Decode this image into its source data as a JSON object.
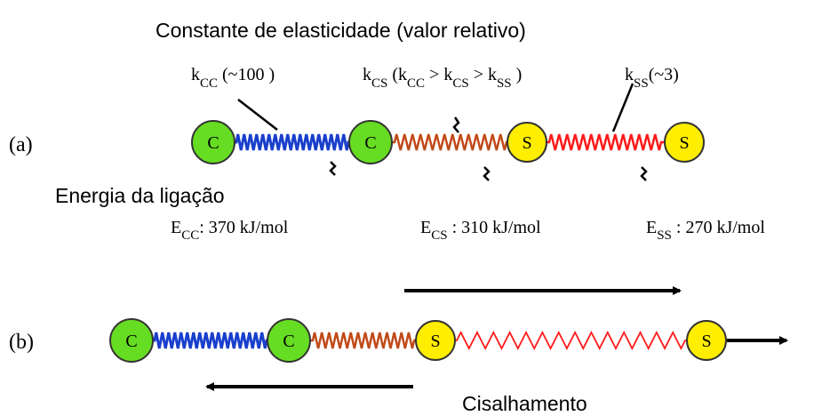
{
  "title": "Constante de elasticidade (valor relativo)",
  "k_labels": [
    {
      "parts": [
        {
          "text": "k",
          "sub": false
        },
        {
          "text": "CC",
          "sub": true
        },
        {
          "text": " (~100 )",
          "sub": false
        }
      ]
    },
    {
      "parts": [
        {
          "text": "k",
          "sub": false
        },
        {
          "text": "CS",
          "sub": true
        },
        {
          "text": " (k",
          "sub": false
        },
        {
          "text": "CC",
          "sub": true
        },
        {
          "text": " > k",
          "sub": false
        },
        {
          "text": "CS",
          "sub": true
        },
        {
          "text": " > k",
          "sub": false
        },
        {
          "text": "SS",
          "sub": true
        },
        {
          "text": " )",
          "sub": false
        }
      ]
    },
    {
      "parts": [
        {
          "text": "k",
          "sub": false
        },
        {
          "text": "SS",
          "sub": true
        },
        {
          "text": "(~3)",
          "sub": false
        }
      ]
    }
  ],
  "panel_a": {
    "label": "(a)",
    "nodes": [
      "C",
      "C",
      "S",
      "S"
    ]
  },
  "energy_heading": "Energia da ligação",
  "energies": [
    {
      "symbol": "E",
      "sub": "CC",
      "value": ": 370  kJ/mol"
    },
    {
      "symbol": "E",
      "sub": "CS",
      "value": " : 310  kJ/mol"
    },
    {
      "symbol": "E",
      "sub": "SS",
      "value": " : 270  kJ/mol"
    }
  ],
  "panel_b": {
    "label": "(b)",
    "nodes": [
      "C",
      "C",
      "S",
      "S"
    ]
  },
  "shear_label": "Cisalhamento"
}
